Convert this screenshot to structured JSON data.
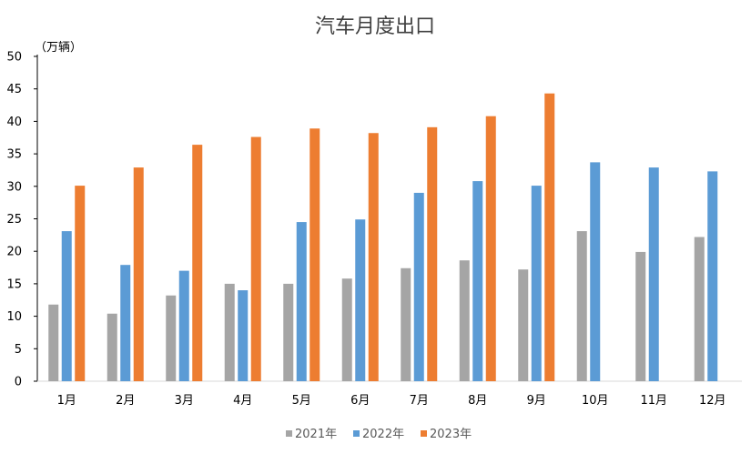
{
  "chart_data": {
    "type": "bar",
    "title": "汽车月度出口",
    "ylabel": "（万辆）",
    "xlabel": "",
    "ylim": [
      0,
      50
    ],
    "yticks": [
      0,
      5,
      10,
      15,
      20,
      25,
      30,
      35,
      40,
      45,
      50
    ],
    "grid": false,
    "legend_position": "bottom",
    "categories": [
      "1月",
      "2月",
      "3月",
      "4月",
      "5月",
      "6月",
      "7月",
      "8月",
      "9月",
      "10月",
      "11月",
      "12月"
    ],
    "series": [
      {
        "name": "2021年",
        "color": "#a5a5a5",
        "values": [
          11.8,
          10.4,
          13.2,
          15.0,
          15.0,
          15.8,
          17.4,
          18.6,
          17.2,
          23.1,
          19.9,
          22.2
        ]
      },
      {
        "name": "2022年",
        "color": "#5b9bd5",
        "values": [
          23.1,
          17.9,
          17.0,
          14.0,
          24.5,
          24.9,
          29.0,
          30.8,
          30.1,
          33.7,
          32.9,
          32.3
        ]
      },
      {
        "name": "2023年",
        "color": "#ed7d31",
        "values": [
          30.1,
          32.9,
          36.4,
          37.6,
          38.9,
          38.2,
          39.1,
          40.8,
          44.3,
          null,
          null,
          null
        ]
      }
    ]
  }
}
